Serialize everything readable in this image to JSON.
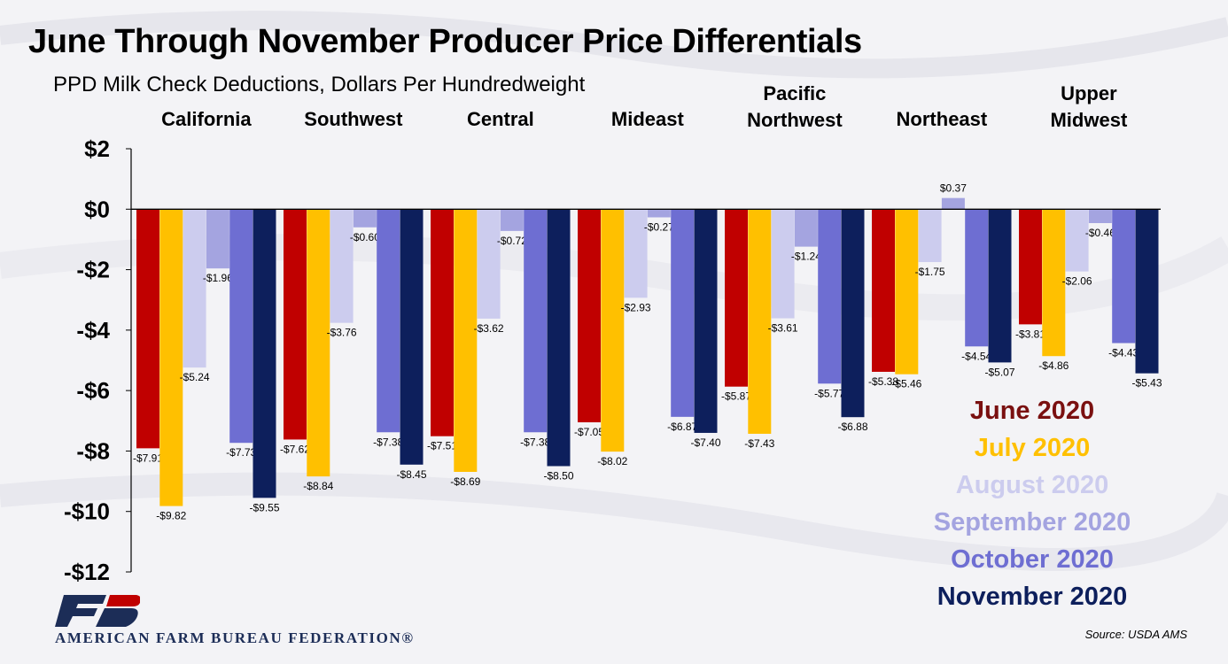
{
  "title": "June Through November Producer Price Differentials",
  "subtitle": "PPD Milk Check Deductions, Dollars Per Hundredweight",
  "source": "Source: USDA AMS",
  "brand": {
    "name": "AMERICAN FARM BUREAU FEDERATION®",
    "logo_text": "FB"
  },
  "chart_data": {
    "type": "bar",
    "title": "June Through November Producer Price Differentials",
    "subtitle": "PPD Milk Check Deductions, Dollars Per Hundredweight",
    "categories": [
      "California",
      "Southwest",
      "Central",
      "Mideast",
      "Pacific Northwest",
      "Northeast",
      "Upper Midwest"
    ],
    "category_lines": [
      [
        "California"
      ],
      [
        "Southwest"
      ],
      [
        "Central"
      ],
      [
        "Mideast"
      ],
      [
        "Pacific",
        "Northwest"
      ],
      [
        "Northeast"
      ],
      [
        "Upper",
        "Midwest"
      ]
    ],
    "ylim": [
      -12,
      2
    ],
    "yticks": [
      2,
      0,
      -2,
      -4,
      -6,
      -8,
      -10,
      -12
    ],
    "ytick_labels": [
      "$2",
      "$0",
      "-$2",
      "-$4",
      "-$6",
      "-$8",
      "-$10",
      "-$12"
    ],
    "grid": false,
    "legend_position": "bottom-right",
    "series": [
      {
        "name": "June 2020",
        "color": "#c00000",
        "values": [
          -7.91,
          -7.62,
          -7.51,
          -7.05,
          -5.87,
          -5.38,
          -3.81
        ],
        "labels": [
          "-$7.91",
          "-$7.62",
          "-$7.51",
          "-$7.05",
          "-$5.87",
          "-$5.38",
          "-$3.81"
        ]
      },
      {
        "name": "July 2020",
        "color": "#ffc000",
        "values": [
          -9.82,
          -8.84,
          -8.69,
          -8.02,
          -7.43,
          -5.46,
          -4.86
        ],
        "labels": [
          "-$9.82",
          "-$8.84",
          "-$8.69",
          "-$8.02",
          "-$7.43",
          "-$5.46",
          "-$4.86"
        ]
      },
      {
        "name": "August 2020",
        "color": "#ccccee",
        "values": [
          -5.24,
          -3.76,
          -3.62,
          -2.93,
          -3.61,
          -1.75,
          -2.06
        ],
        "labels": [
          "-$5.24",
          "-$3.76",
          "-$3.62",
          "-$2.93",
          "-$3.61",
          "-$1.75",
          "-$2.06"
        ]
      },
      {
        "name": "September 2020",
        "color": "#a4a4e0",
        "values": [
          -1.96,
          -0.6,
          -0.72,
          -0.27,
          -1.24,
          0.37,
          -0.46
        ],
        "labels": [
          "-$1.96",
          "-$0.60",
          "-$0.72",
          "-$0.27",
          "-$1.24",
          "$0.37",
          "-$0.46"
        ]
      },
      {
        "name": "October 2020",
        "color": "#6e6ed2",
        "values": [
          -7.73,
          -7.38,
          -7.38,
          -6.87,
          -5.77,
          -4.54,
          -4.43
        ],
        "labels": [
          "-$7.73",
          "-$7.38",
          "-$7.38",
          "-$6.87",
          "-$5.77",
          "-$4.54",
          "-$4.43"
        ]
      },
      {
        "name": "November 2020",
        "color": "#0d1f5c",
        "values": [
          -9.55,
          -8.45,
          -8.5,
          -7.4,
          -6.88,
          -5.07,
          -5.43
        ],
        "labels": [
          "-$9.55",
          "-$8.45",
          "-$8.50",
          "-$7.40",
          "-$6.88",
          "-$5.07",
          "-$5.43"
        ]
      }
    ],
    "legend_colors": [
      "#7a1010",
      "#ffc000",
      "#ccccee",
      "#a4a4e0",
      "#6e6ed2",
      "#0d1f5c"
    ]
  }
}
